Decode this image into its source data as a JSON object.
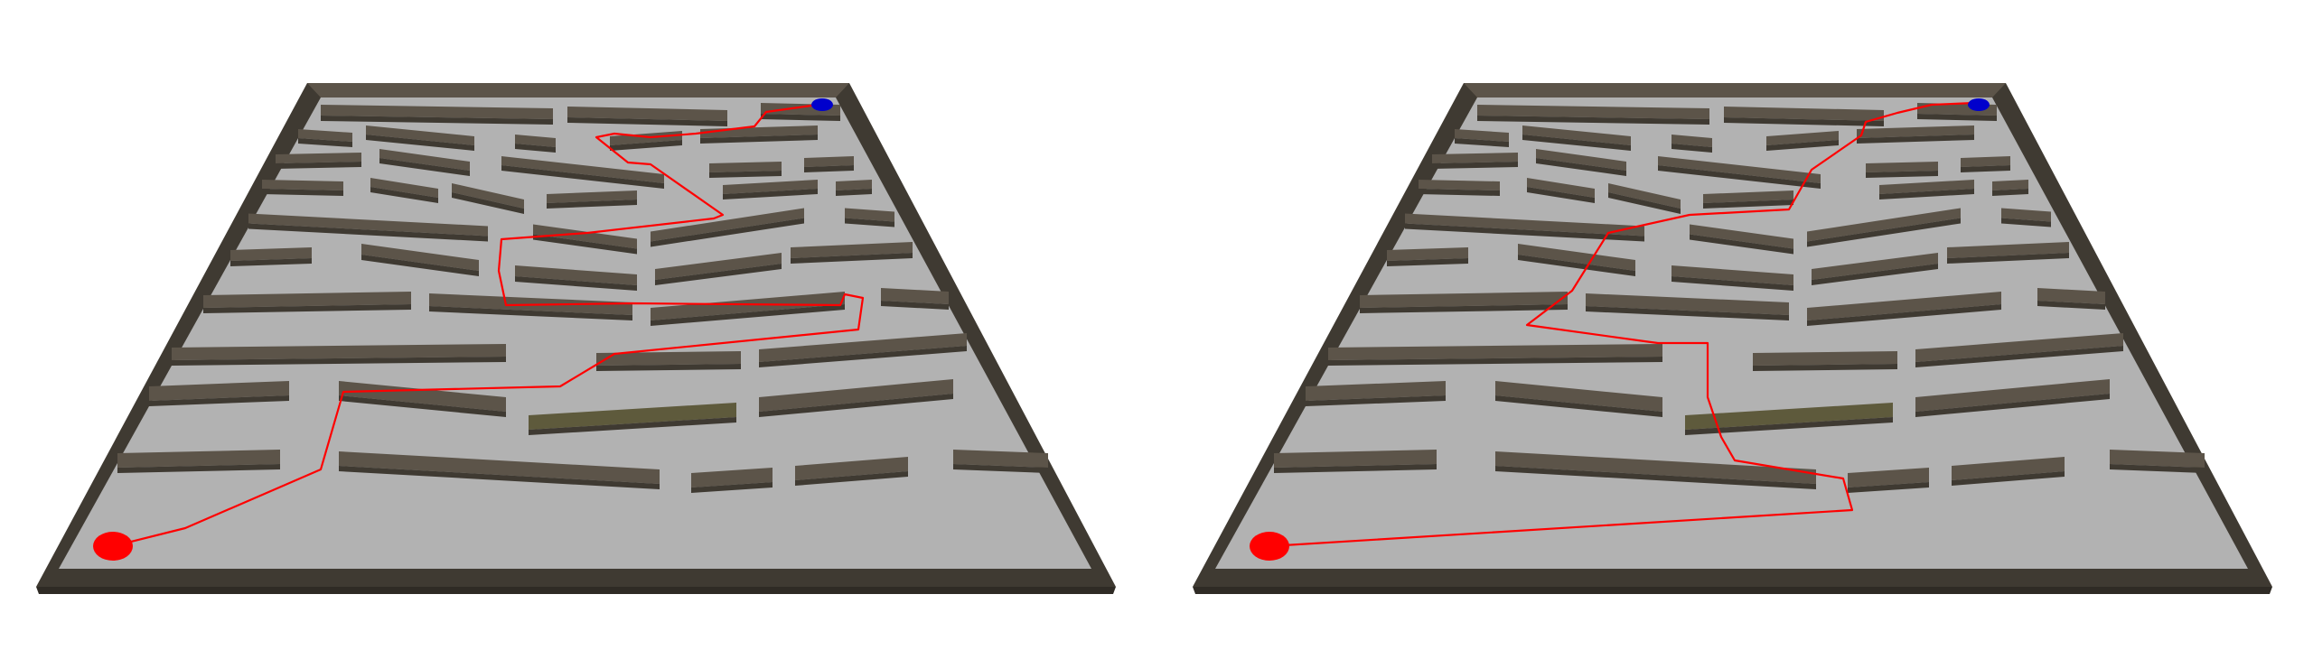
{
  "scene": {
    "panels": [
      {
        "name": "maze-left",
        "path_label": "route-a"
      },
      {
        "name": "maze-right",
        "path_label": "route-b"
      }
    ],
    "colors": {
      "background": "#ffffff",
      "floor": "#b2b2b2",
      "wall_top": "#5c5449",
      "wall_side": "#3f3a32",
      "wall_highlight": "#6f6552",
      "path": "#ff0000",
      "start_marker": "#ff0000",
      "goal_marker": "#0000cc"
    },
    "markers": {
      "start": "start-marker",
      "goal": "goal-marker"
    }
  }
}
